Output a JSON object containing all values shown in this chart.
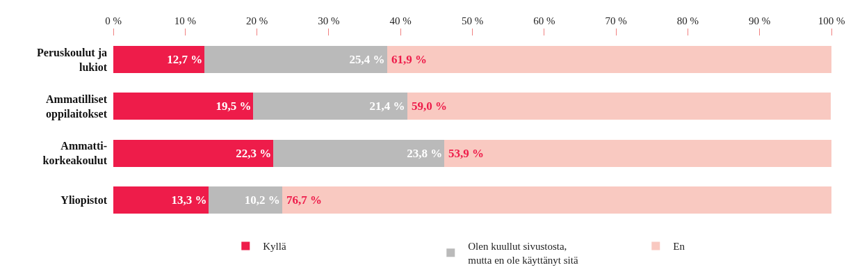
{
  "chart_data": {
    "type": "bar",
    "orientation": "horizontal",
    "stacked": true,
    "categories": [
      "Peruskoulut ja\nlukiot",
      "Ammatilliset\noppilaitokset",
      "Ammatti-\nkorkeakoulut",
      "Yliopistot"
    ],
    "series": [
      {
        "name": "Kyllä",
        "color": "#ee1c4a",
        "values": [
          12.7,
          19.5,
          22.3,
          13.3
        ],
        "value_labels": [
          "12,7 %",
          "19,5 %",
          "22,3 %",
          "13,3 %"
        ]
      },
      {
        "name": "Olen kuullut sivustosta,\nmutta en ole käyttänyt sitä",
        "color": "#bababa",
        "values": [
          25.4,
          21.4,
          23.8,
          10.2
        ],
        "value_labels": [
          "25,4 %",
          "21,4 %",
          "23,8 %",
          "10,2 %"
        ]
      },
      {
        "name": "En",
        "color": "#f9c9c1",
        "values": [
          61.9,
          59.0,
          53.9,
          76.7
        ],
        "value_labels": [
          "61,9 %",
          "59,0 %",
          "53,9 %",
          "76,7 %"
        ]
      }
    ],
    "xlim": [
      0,
      100
    ],
    "xticks": [
      {
        "value": 0,
        "label": "0 %"
      },
      {
        "value": 10,
        "label": "10 %"
      },
      {
        "value": 20,
        "label": "20 %"
      },
      {
        "value": 30,
        "label": "30 %"
      },
      {
        "value": 40,
        "label": "40 %"
      },
      {
        "value": 50,
        "label": "50 %"
      },
      {
        "value": 60,
        "label": "60 %"
      },
      {
        "value": 70,
        "label": "70 %"
      },
      {
        "value": 80,
        "label": "80 %"
      },
      {
        "value": 90,
        "label": "90 %"
      },
      {
        "value": 100,
        "label": "100 %"
      }
    ],
    "legend": "bottom"
  }
}
